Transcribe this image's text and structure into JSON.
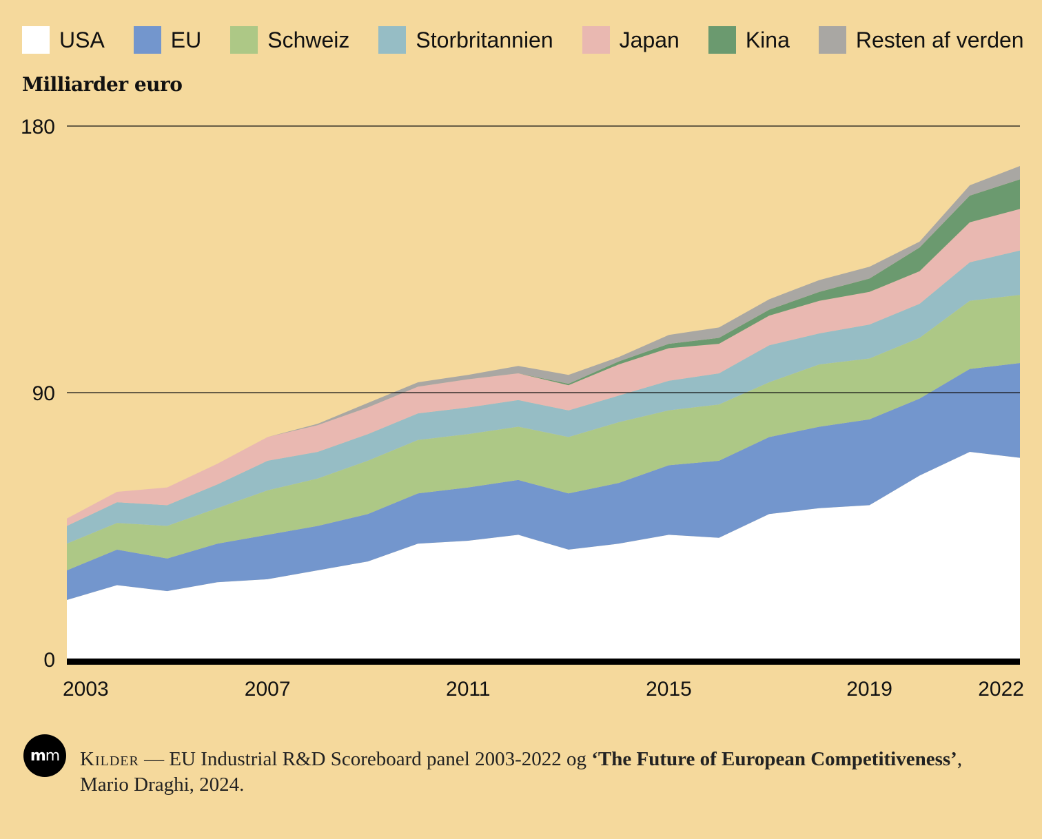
{
  "legend": {
    "items": [
      {
        "label": "USA",
        "color": "#ffffff"
      },
      {
        "label": "EU",
        "color": "#7396cd"
      },
      {
        "label": "Schweiz",
        "color": "#adc886"
      },
      {
        "label": "Storbritannien",
        "color": "#96bdc5"
      },
      {
        "label": "Japan",
        "color": "#e9b8b1"
      },
      {
        "label": "Kina",
        "color": "#6b9a6f"
      },
      {
        "label": "Resten af verden",
        "color": "#a9a7a3"
      }
    ]
  },
  "chart_data": {
    "type": "area",
    "stacked": true,
    "ylabel": "Milliarder euro",
    "ylim": [
      0,
      180
    ],
    "yticks": [
      0,
      90,
      180
    ],
    "x_tick_labels": [
      "2003",
      "2007",
      "2011",
      "2015",
      "2019",
      "2022"
    ],
    "x": [
      2003,
      2004,
      2005,
      2006,
      2007,
      2008,
      2009,
      2010,
      2011,
      2012,
      2013,
      2014,
      2015,
      2016,
      2017,
      2018,
      2019,
      2020,
      2021,
      2022
    ],
    "series": [
      {
        "name": "USA",
        "values": [
          20,
          25,
          23,
          26,
          27,
          30,
          33,
          39,
          40,
          42,
          37,
          39,
          42,
          41,
          49,
          51,
          52,
          62,
          70,
          68
        ]
      },
      {
        "name": "EU",
        "values": [
          10,
          12,
          11,
          13,
          15,
          15,
          16,
          17,
          18,
          18.5,
          19,
          20.5,
          23.5,
          26,
          26,
          27.5,
          29,
          26,
          28,
          32
        ]
      },
      {
        "name": "Schweiz",
        "values": [
          9,
          9,
          11,
          12,
          15,
          16,
          18,
          18,
          18,
          18,
          19,
          20.5,
          18.5,
          19,
          18.5,
          21,
          20.5,
          20.5,
          23,
          23
        ]
      },
      {
        "name": "Storbritannien",
        "values": [
          6,
          7,
          7,
          8,
          10,
          9,
          9,
          9,
          9,
          9,
          9,
          9,
          10,
          10.5,
          12.5,
          10.5,
          11.5,
          11.5,
          13,
          15
        ]
      },
      {
        "name": "Japan",
        "values": [
          2.5,
          3.5,
          6,
          7,
          8,
          9,
          9,
          9,
          9.5,
          9,
          8.5,
          10.5,
          11,
          10,
          10,
          11,
          11,
          11,
          13.5,
          14
        ]
      },
      {
        "name": "Kina",
        "values": [
          0,
          0,
          0,
          0,
          0,
          0,
          0,
          0,
          0,
          0,
          0.5,
          1,
          1.5,
          2,
          2,
          3,
          4.5,
          8,
          9,
          10
        ]
      },
      {
        "name": "Resten af verden",
        "values": [
          0,
          0,
          0,
          0,
          0,
          0.5,
          1.5,
          1.5,
          1.5,
          2.5,
          3,
          1.5,
          3,
          3.5,
          3.5,
          4,
          4,
          2,
          3.5,
          4.5
        ]
      }
    ]
  },
  "footer": {
    "logo_text_1": "m",
    "logo_text_2": "m",
    "source_heading": "Kilder",
    "separator": " — ",
    "source_plain_1": "EU Industrial R&D Scoreboard panel 2003-2022 og ",
    "source_bold": "‘The Future of European Competitiveness’",
    "source_plain_2": ", Mario Draghi, 2024."
  }
}
